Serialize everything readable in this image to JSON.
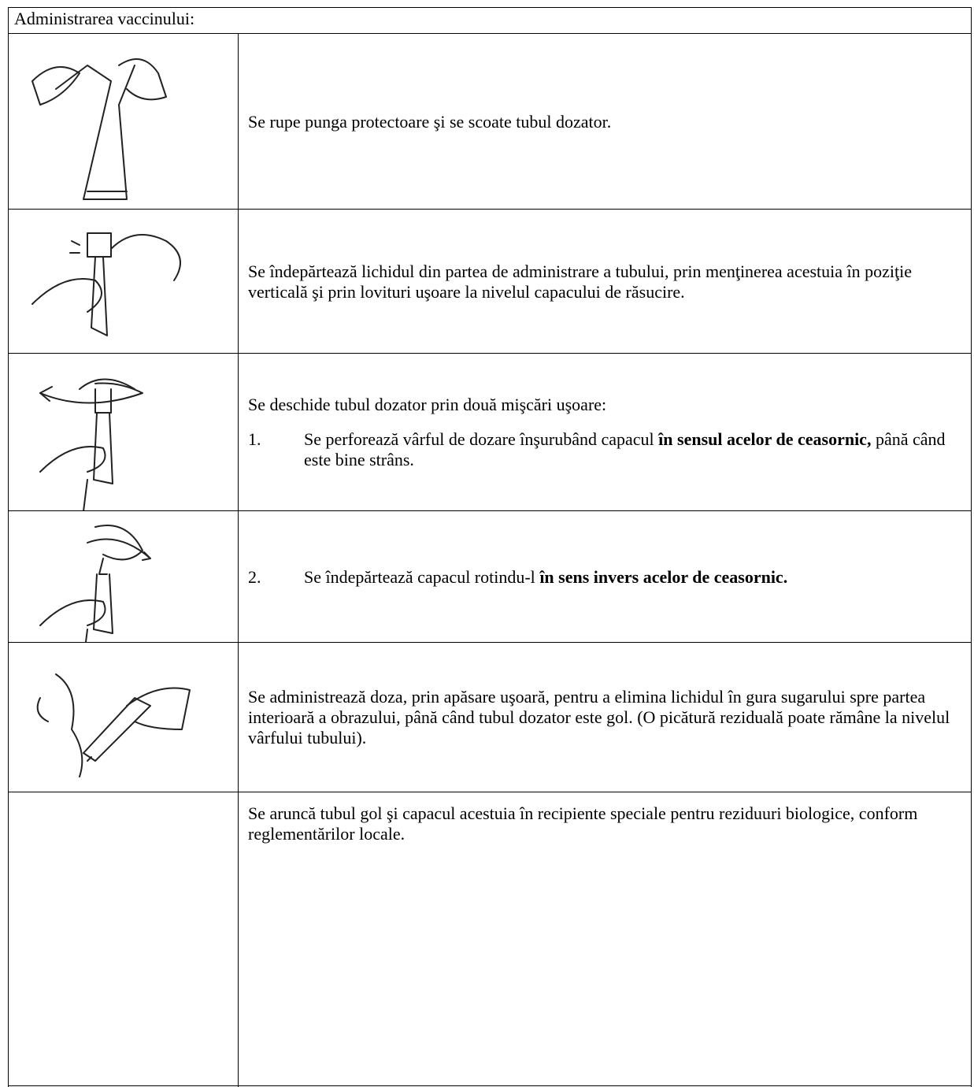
{
  "header": {
    "title": "Administrarea vaccinului:"
  },
  "rows": [
    {
      "text": "Se rupe punga protectoare şi se scoate tubul dozator."
    },
    {
      "text": "Se îndepărtează lichidul din partea de administrare a tubului, prin menţinerea acestuia în poziţie verticală şi prin lovituri uşoare la nivelul capacului de răsucire."
    },
    {
      "text": "Se deschide tubul dozator prin două mişcări uşoare:",
      "item": {
        "number": "1.",
        "text": "Se perforează vârful de dozare înşurubând capacul",
        "bold": "în sensul acelor de ceasornic,",
        "after": "până când este bine strâns."
      }
    },
    {
      "item": {
        "number": "2.",
        "text": "Se îndepărtează capacul rotindu-l",
        "bold": "în sens invers acelor de ceasornic."
      }
    },
    {
      "text": "Se administrează doza, prin apăsare uşoară, pentru a elimina lichidul în gura sugarului spre partea interioară a obrazului, până când tubul dozator este gol. (O picătură reziduală poate rămâne la nivelul vârfului tubului)."
    },
    {
      "text": "Se aruncă tubul gol şi capacul acestuia în recipiente speciale pentru reziduuri biologice, conform reglementărilor locale."
    }
  ]
}
